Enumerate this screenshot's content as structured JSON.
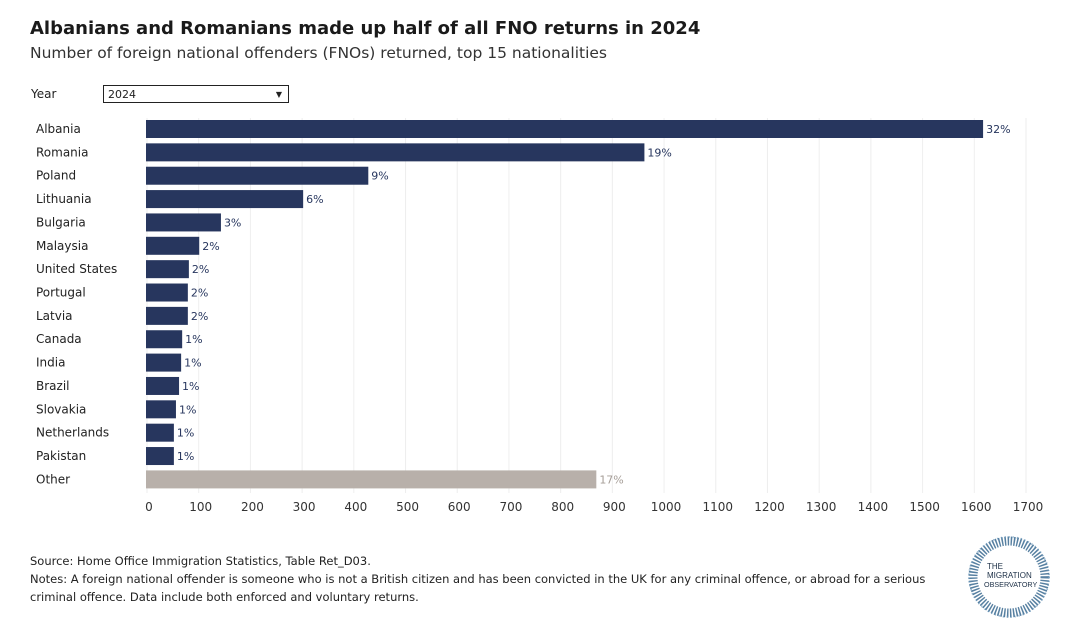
{
  "title": "Albanians and Romanians made up half of all FNO returns in 2024",
  "subtitle": "Number of foreign national offenders (FNOs) returned, top 15 nationalities",
  "filter": {
    "label": "Year",
    "value": "2024"
  },
  "chart_data": {
    "type": "bar",
    "orientation": "horizontal",
    "categories": [
      "Albania",
      "Romania",
      "Poland",
      "Lithuania",
      "Bulgaria",
      "Malaysia",
      "United States",
      "Portugal",
      "Latvia",
      "Canada",
      "India",
      "Brazil",
      "Slovakia",
      "Netherlands",
      "Pakistan",
      "Other"
    ],
    "values": [
      1617,
      962,
      428,
      302,
      143,
      101,
      81,
      79,
      79,
      68,
      66,
      62,
      56,
      52,
      52,
      869
    ],
    "labels": [
      "32%",
      "19%",
      "9%",
      "6%",
      "3%",
      "2%",
      "2%",
      "2%",
      "2%",
      "1%",
      "1%",
      "1%",
      "1%",
      "1%",
      "1%",
      "17%"
    ],
    "xlim": [
      0,
      1700
    ],
    "xticks": [
      0,
      100,
      200,
      300,
      400,
      500,
      600,
      700,
      800,
      900,
      1000,
      1100,
      1200,
      1300,
      1400,
      1500,
      1600,
      1700
    ],
    "grid": true,
    "colors": {
      "main": "#27365e",
      "other": "#b8b0aa"
    }
  },
  "footer": {
    "source": "Source: Home Office Immigration Statistics, Table Ret_D03.",
    "notes": "Notes: A foreign national offender is someone who is not a British citizen and has been convicted in the UK for any criminal offence, or abroad for a serious criminal offence. Data include both enforced and voluntary returns."
  },
  "logo": {
    "text": "THE MIGRATION OBSERVATORY"
  }
}
